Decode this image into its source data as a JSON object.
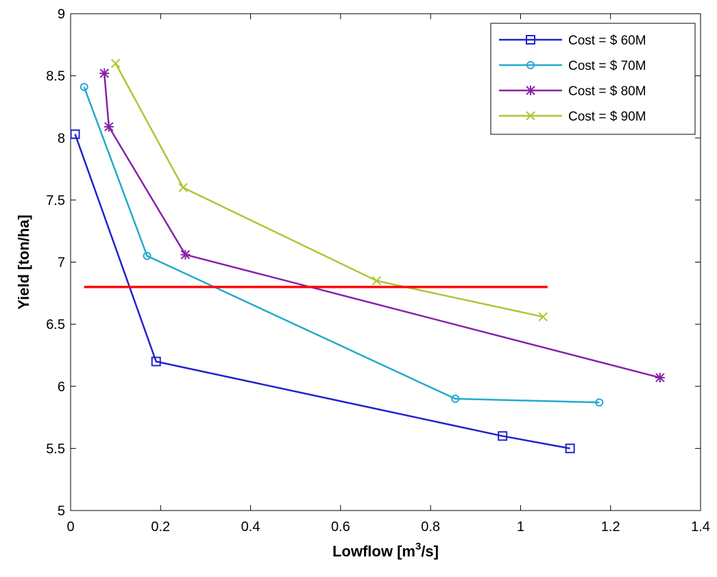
{
  "chart_data": {
    "type": "line",
    "title": "",
    "xlabel": {
      "main": "Lowflow [m",
      "sup": "3",
      "tail": "/s]"
    },
    "ylabel": "Yield [ton/ha]",
    "xlim": [
      0,
      1.4
    ],
    "ylim": [
      5,
      9
    ],
    "xticks": [
      0,
      0.2,
      0.4,
      0.6,
      0.8,
      1,
      1.2,
      1.4
    ],
    "yticks": [
      5,
      5.5,
      6,
      6.5,
      7,
      7.5,
      8,
      8.5,
      9
    ],
    "xtick_labels": [
      "0",
      "0.2",
      "0.4",
      "0.6",
      "0.8",
      "1",
      "1.2",
      "1.4"
    ],
    "ytick_labels": [
      "5",
      "5.5",
      "6",
      "6.5",
      "7",
      "7.5",
      "8",
      "8.5",
      "9"
    ],
    "grid": false,
    "legend_position": "top-right",
    "series": [
      {
        "name": "Cost = $ 60M",
        "color": "#2222cc",
        "marker": "square",
        "x": [
          0.01,
          0.19,
          0.96,
          1.11
        ],
        "y": [
          8.03,
          6.2,
          5.6,
          5.5
        ]
      },
      {
        "name": "Cost = $ 70M",
        "color": "#22aacc",
        "marker": "circle",
        "x": [
          0.03,
          0.17,
          0.855,
          1.175
        ],
        "y": [
          8.41,
          7.05,
          5.9,
          5.87
        ]
      },
      {
        "name": "Cost = $ 80M",
        "color": "#8822aa",
        "marker": "star",
        "x": [
          0.075,
          0.085,
          0.255,
          1.31
        ],
        "y": [
          8.52,
          8.09,
          7.06,
          6.07
        ]
      },
      {
        "name": "Cost = $ 90M",
        "color": "#aac833",
        "marker": "x",
        "x": [
          0.1,
          0.25,
          0.68,
          1.05
        ],
        "y": [
          8.6,
          7.6,
          6.85,
          6.56
        ]
      }
    ],
    "reference_line": {
      "y": 6.8,
      "x": [
        0.03,
        1.06
      ],
      "color": "#ff0000"
    }
  }
}
